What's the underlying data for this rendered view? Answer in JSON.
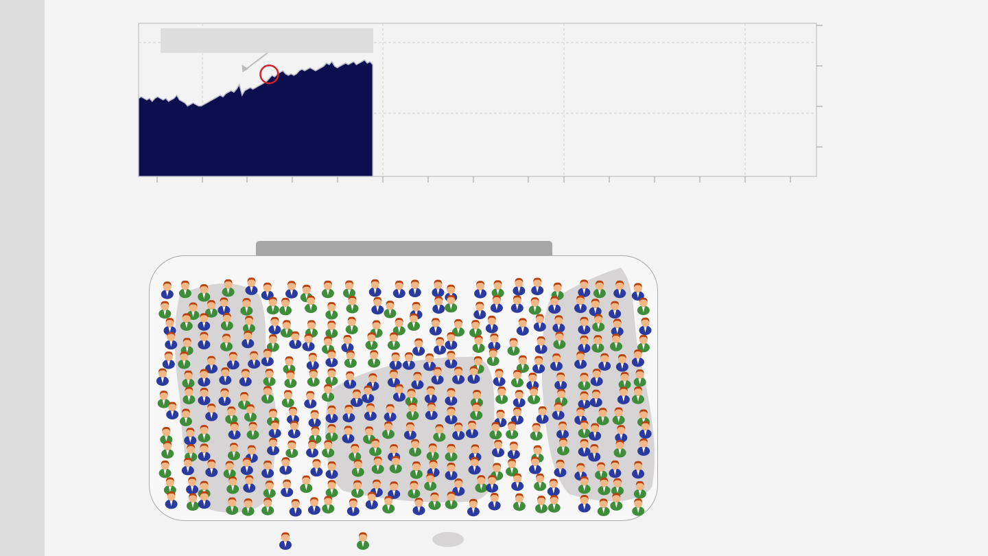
{
  "sidebar": {},
  "colors": {
    "background": "#f3f3f3",
    "sidebar": "#dcdcdc",
    "area_fill": "#0b0f4e",
    "highlight_ring": "#d2232a",
    "annotation_box": "#dddddd",
    "cluster_fill": "#d6d4d5",
    "header_bar": "#a6a6a6",
    "person_suit_blue": "#2b3a9e",
    "person_suit_green": "#3f8c3a",
    "person_hair": "#b8420f",
    "person_face": "#f0b886"
  },
  "chart_data": [
    {
      "type": "area",
      "title": "",
      "xlabel": "",
      "ylabel": "",
      "x_ticks": 15,
      "y_ticks": 4,
      "grid": true,
      "annotation": {
        "text": "",
        "index": 48,
        "marker": "circle"
      },
      "values": [
        51,
        52,
        51,
        50,
        51,
        49,
        51,
        52,
        51,
        50,
        51,
        49,
        50,
        51,
        53,
        50,
        49,
        48,
        46,
        47,
        48,
        47,
        46,
        46,
        47,
        48,
        49,
        50,
        51,
        52,
        53,
        52,
        54,
        55,
        56,
        55,
        57,
        60,
        53,
        56,
        57,
        58,
        57,
        58,
        59,
        60,
        61,
        62,
        64,
        66,
        65,
        67,
        68,
        69,
        67,
        66,
        67,
        66,
        67,
        69,
        70,
        69,
        70,
        71,
        70,
        69,
        70,
        71,
        72,
        74,
        73,
        75,
        72,
        71,
        72,
        73,
        74,
        73,
        74,
        75,
        73,
        74,
        75,
        76,
        74,
        75,
        73
      ],
      "ylim": [
        0,
        100
      ],
      "n_points_full": 250
    },
    {
      "type": "scatter",
      "title": "",
      "legend": {
        "entries": [
          "",
          "",
          ""
        ],
        "placement": "bottom"
      },
      "series": [
        {
          "name": "",
          "icon": "person-blue-icon",
          "count": 150
        },
        {
          "name": "",
          "icon": "person-green-icon",
          "count": 150
        }
      ]
    }
  ]
}
